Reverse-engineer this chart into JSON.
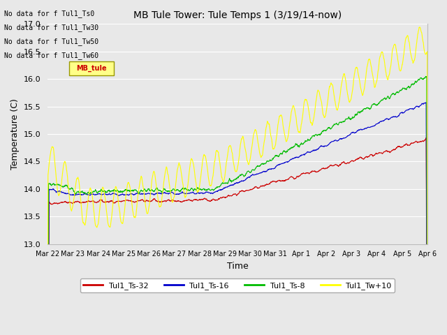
{
  "title": "MB Tule Tower: Tule Temps 1 (3/19/14-now)",
  "xlabel": "Time",
  "ylabel": "Temperature (C)",
  "ylim": [
    13.0,
    17.0
  ],
  "yticks": [
    13.0,
    13.5,
    14.0,
    14.5,
    15.0,
    15.5,
    16.0,
    16.5,
    17.0
  ],
  "xtick_labels": [
    "Mar 22",
    "Mar 23",
    "Mar 24",
    "Mar 25",
    "Mar 26",
    "Mar 27",
    "Mar 28",
    "Mar 29",
    "Mar 30",
    "Mar 31",
    "Apr 1",
    "Apr 2",
    "Apr 3",
    "Apr 4",
    "Apr 5",
    "Apr 6"
  ],
  "legend_entries": [
    {
      "label": "Tul1_Ts-32",
      "color": "#cc0000"
    },
    {
      "label": "Tul1_Ts-16",
      "color": "#0000cc"
    },
    {
      "label": "Tul1_Ts-8",
      "color": "#00bb00"
    },
    {
      "label": "Tul1_Tw+10",
      "color": "#ffff00"
    }
  ],
  "no_data_texts": [
    "No data for f Tul1_Ts0",
    "No data for f Tul1_Tw30",
    "No data for f Tul1_Tw50",
    "No data for f Tul1_Tw60"
  ],
  "bg_color": "#e8e8e8",
  "grid_color": "#ffffff",
  "fig_bg_color": "#e8e8e8",
  "n_points": 1500,
  "yellow_box_text": "MB_tule",
  "yellow_box_color": "#ffff88",
  "yellow_box_border": "#999900",
  "yellow_text_color": "#cc0000"
}
